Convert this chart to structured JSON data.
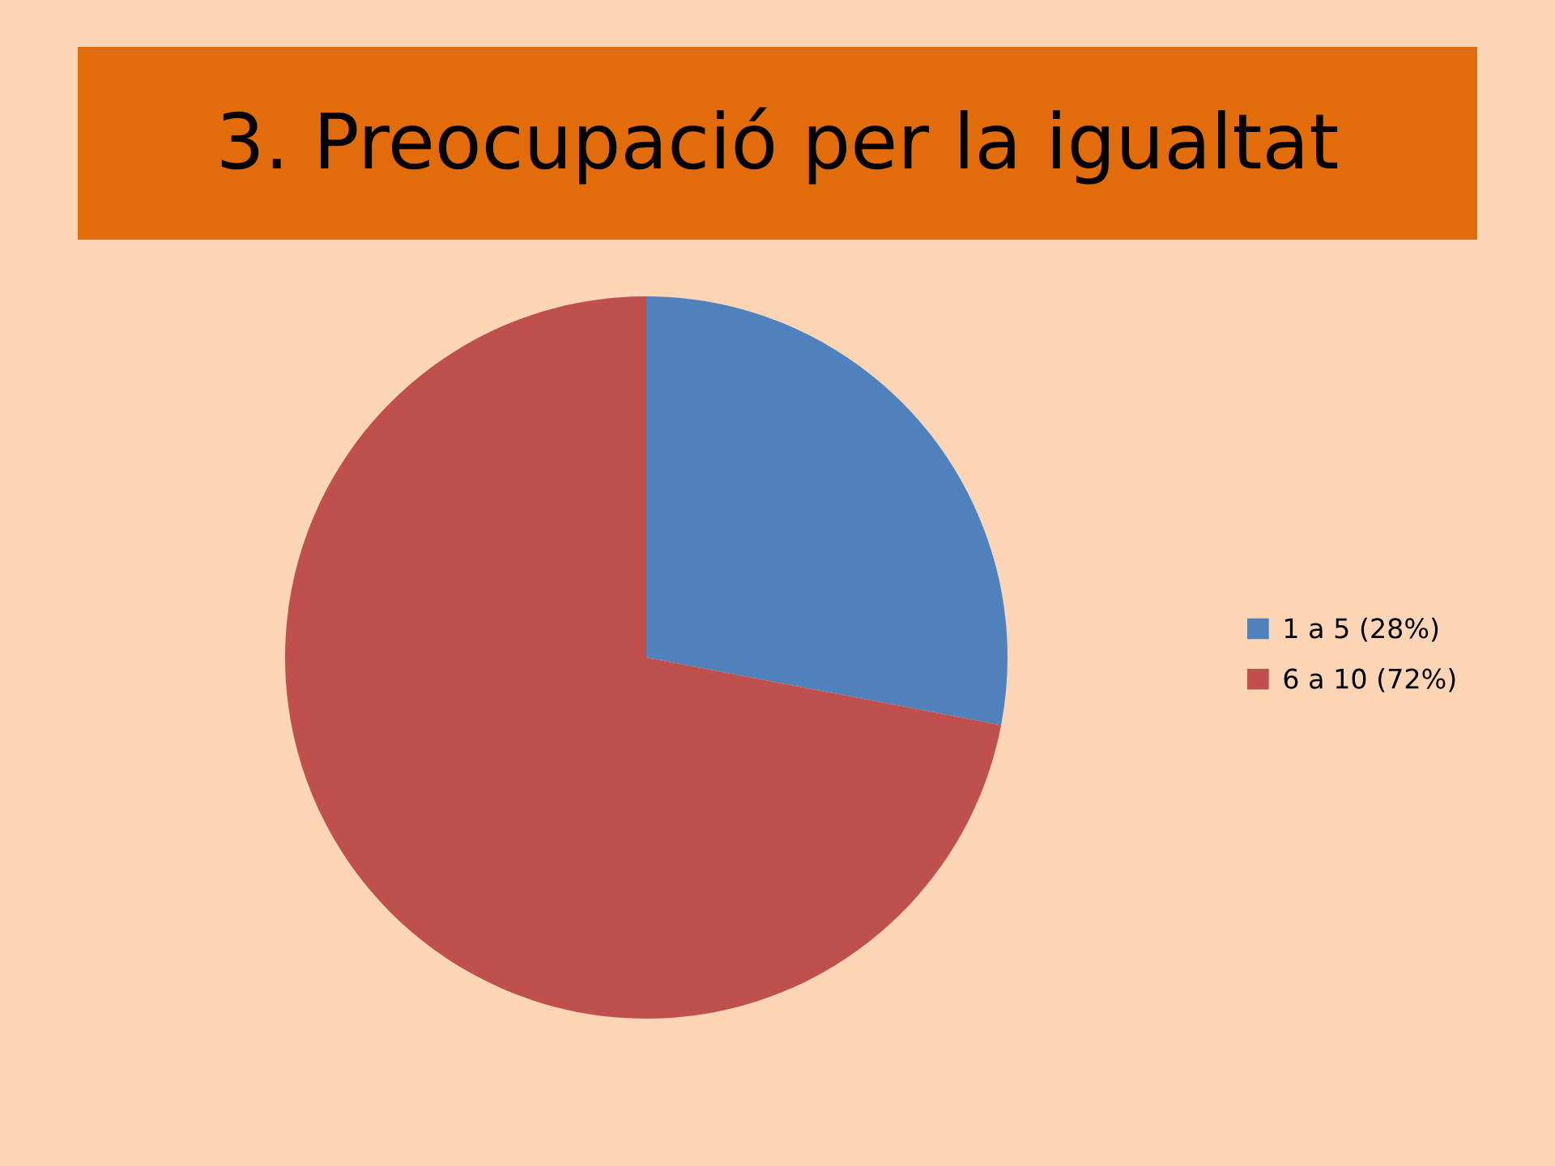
{
  "chart_data": {
    "type": "pie",
    "title": "3. Preocupació per la igualtat",
    "categories": [
      "1 a 5 (28%)",
      "6 a 10 (72%)"
    ],
    "values": [
      28,
      72
    ],
    "colors": [
      "#4f81bd",
      "#c0504d"
    ],
    "legend": "right"
  }
}
